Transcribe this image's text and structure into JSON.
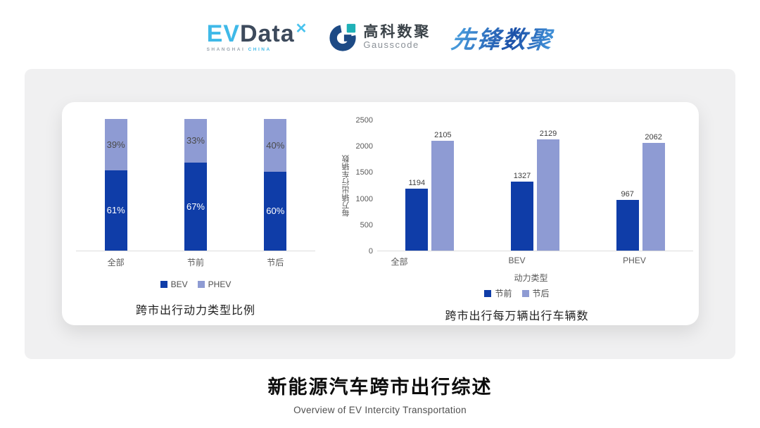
{
  "header": {
    "evdata": {
      "ev": "EV",
      "data": "Data",
      "mark": "✕",
      "sub_left": "SHANGHAI",
      "sub_right": "CHINA"
    },
    "gausscode": {
      "cn": "高科数聚",
      "en": "Gausscode"
    },
    "pioneer": {
      "text": "先锋数聚"
    }
  },
  "colors": {
    "primary_dark_blue": "#0F3DA8",
    "secondary_light_blue": "#8E9BD3",
    "card_gray": "#f0f0f1",
    "axis_line": "#dcdcdc",
    "tick_text": "#595959",
    "gausscode_navy": "#1d4a85",
    "gausscode_teal": "#1fb1b7",
    "evdata_cyan": "#3fb9e8"
  },
  "chart_data": [
    {
      "type": "bar",
      "variant": "stacked-100",
      "title": "跨市出行动力类型比例",
      "categories": [
        "全部",
        "节前",
        "节后"
      ],
      "series": [
        {
          "name": "BEV",
          "values": [
            61,
            67,
            60
          ],
          "color": "#0F3DA8",
          "label_suffix": "%",
          "label_color": "#ffffff"
        },
        {
          "name": "PHEV",
          "values": [
            39,
            33,
            40
          ],
          "color": "#8E9BD3",
          "label_suffix": "%",
          "label_color": "#4a4a4a"
        }
      ],
      "stack_order_top_first": [
        "PHEV",
        "BEV"
      ],
      "legend_position": "bottom",
      "grid": false,
      "ylim": [
        0,
        100
      ]
    },
    {
      "type": "bar",
      "variant": "grouped",
      "title": "跨市出行每万辆出行车辆数",
      "xlabel": "动力类型",
      "ylabel": "每万辆出行车辆数",
      "categories": [
        "全部",
        "BEV",
        "PHEV"
      ],
      "series": [
        {
          "name": "节前",
          "values": [
            1194,
            1327,
            967
          ],
          "color": "#0F3DA8"
        },
        {
          "name": "节后",
          "values": [
            2105,
            2129,
            2062
          ],
          "color": "#8E9BD3"
        }
      ],
      "ylim": [
        0,
        2500
      ],
      "ytick_step": 500,
      "yticks": [
        0,
        500,
        1000,
        1500,
        2000,
        2500
      ],
      "legend_position": "bottom",
      "grid": false
    }
  ],
  "footer": {
    "title": "新能源汽车跨市出行综述",
    "subtitle": "Overview of EV Intercity Transportation"
  }
}
